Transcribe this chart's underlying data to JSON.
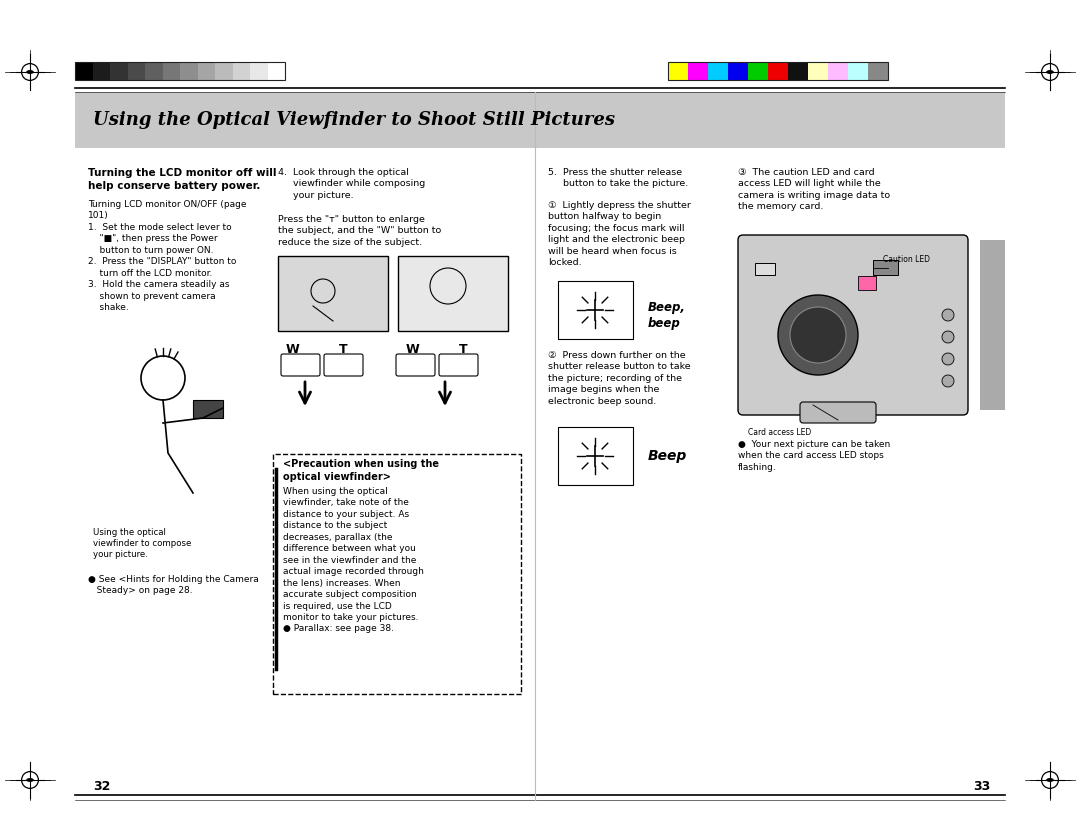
{
  "page_bg": "#ffffff",
  "header_band_color": "#c8c8c8",
  "header_text": "Using the Optical Viewfinder to Shoot Still Pictures",
  "page_number_left": "32",
  "page_number_right": "33",
  "grayscale_colors": [
    "#000000",
    "#1a1a1a",
    "#2d2d2d",
    "#404040",
    "#555555",
    "#6a6a6a",
    "#808080",
    "#999999",
    "#b0b0b0",
    "#c8c8c8",
    "#ffffff"
  ],
  "color_bar_colors": [
    "#ffff00",
    "#ff00ff",
    "#00ffff",
    "#0000ff",
    "#00cc00",
    "#ff0000",
    "#000000",
    "#ffff99",
    "#ff99ff",
    "#99ffff",
    "#aaaaaa"
  ],
  "font_size_title": 13,
  "font_size_body": 7.2,
  "font_size_small": 6.5,
  "font_size_page_num": 9
}
